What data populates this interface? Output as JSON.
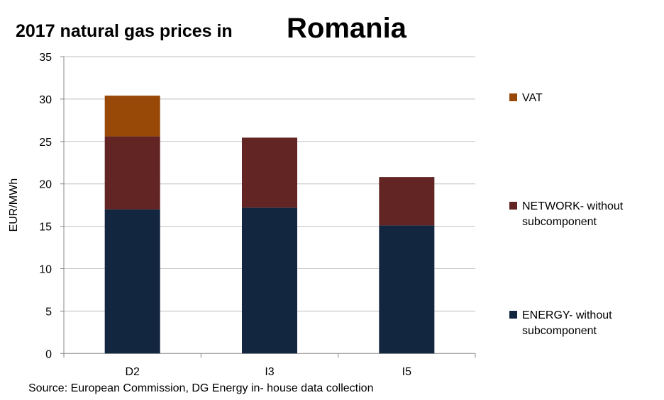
{
  "title": "2017 natural gas  prices in",
  "country": "Romania",
  "source": "Source: European Commission, DG Energy in- house data collection",
  "chart_data": {
    "type": "bar",
    "stacked": true,
    "categories": [
      "D2",
      "I3",
      "I5"
    ],
    "series": [
      {
        "name": "ENERGY- without subcomponent",
        "color": "#12263f",
        "values": [
          17.0,
          17.2,
          15.1
        ]
      },
      {
        "name": "NETWORK- without subcomponent",
        "color": "#632523",
        "values": [
          8.6,
          8.25,
          5.7
        ]
      },
      {
        "name": "VAT",
        "color": "#984807",
        "values": [
          4.8,
          0,
          0
        ]
      }
    ],
    "ylabel": "EUR/MWh",
    "xlabel": "",
    "ylim": [
      0,
      35
    ],
    "yticks": [
      "0",
      "5",
      "10",
      "15",
      "20",
      "25",
      "30",
      "35"
    ],
    "grid": true,
    "legend_position": "right"
  }
}
